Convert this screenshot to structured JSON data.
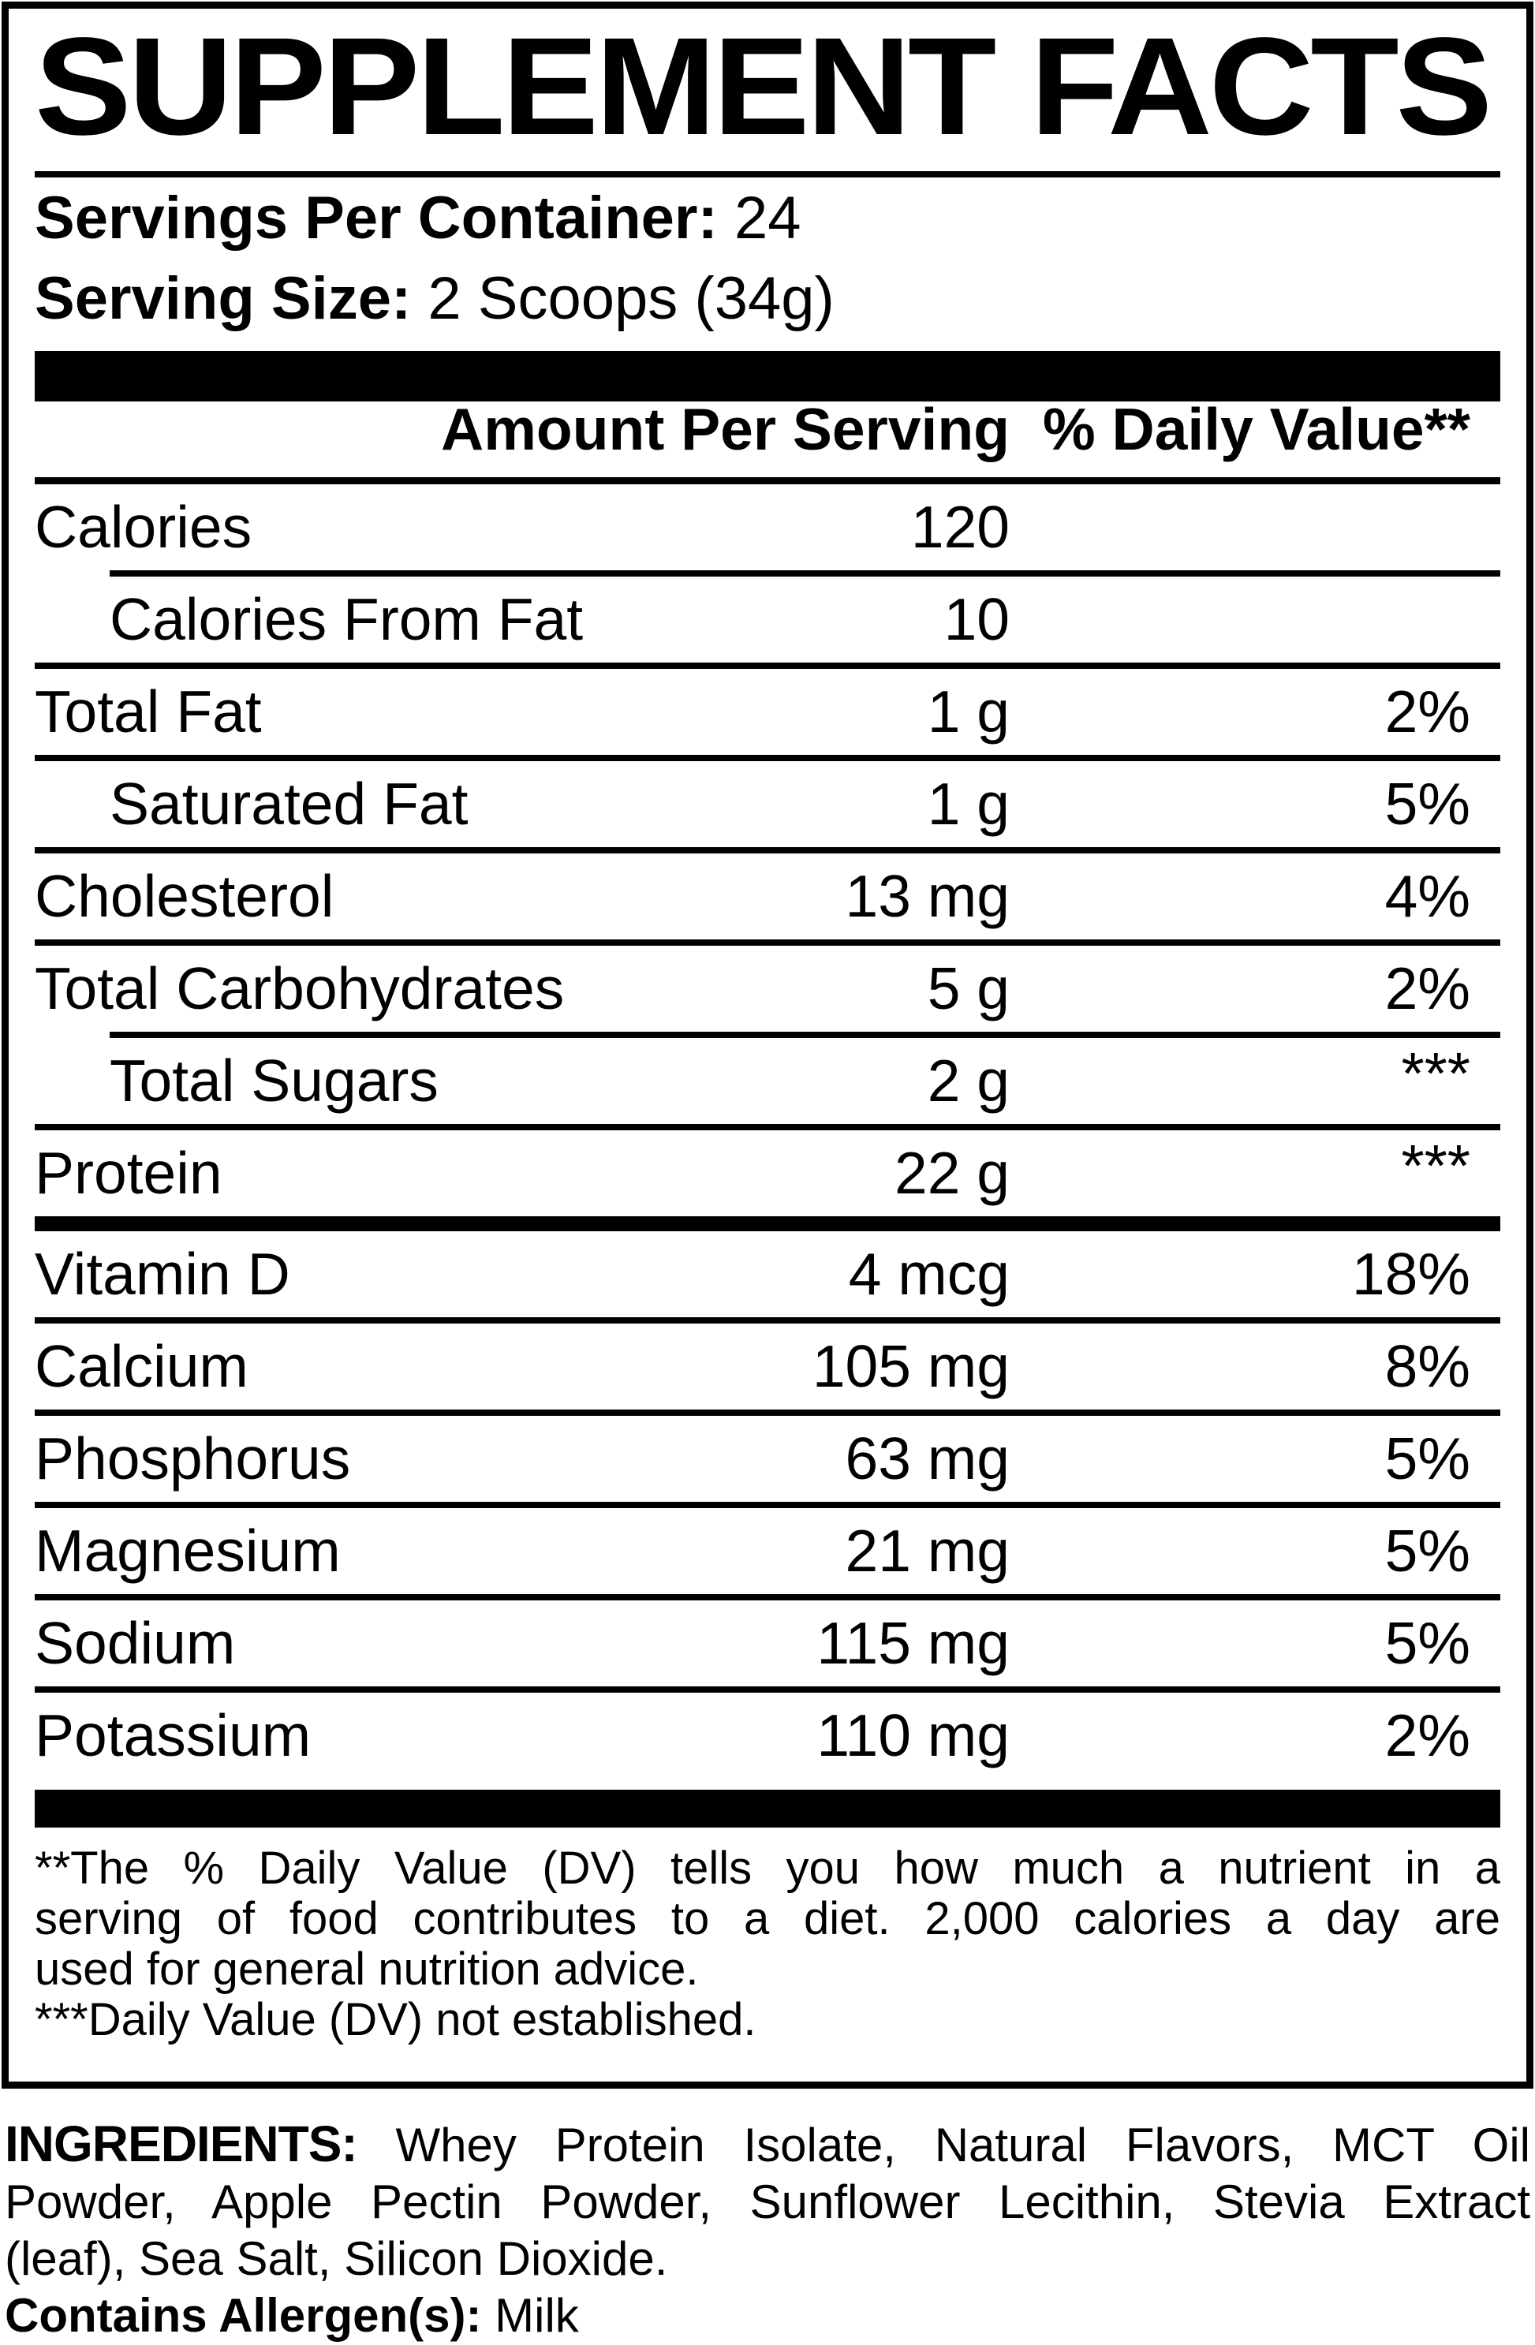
{
  "title": "SUPPLEMENT FACTS",
  "servings": {
    "label": "Servings Per Container:",
    "value": "24"
  },
  "serving_size": {
    "label": "Serving Size:",
    "value": "2 Scoops (34g)"
  },
  "table": {
    "col_amount": "Amount Per Serving",
    "col_dv": "% Daily Value**",
    "rows": [
      {
        "name": "Calories",
        "amount": "120",
        "dv": "",
        "indent": false,
        "dv_raised": false,
        "sep_after": "indent"
      },
      {
        "name": "Calories From Fat",
        "amount": "10",
        "dv": "",
        "indent": true,
        "dv_raised": false,
        "sep_after": "full"
      },
      {
        "name": "Total Fat",
        "amount": "1 g",
        "dv": "2%",
        "indent": false,
        "dv_raised": false,
        "sep_after": "full"
      },
      {
        "name": "Saturated Fat",
        "amount": "1 g",
        "dv": "5%",
        "indent": true,
        "dv_raised": false,
        "sep_after": "full"
      },
      {
        "name": "Cholesterol",
        "amount": "13 mg",
        "dv": "4%",
        "indent": false,
        "dv_raised": false,
        "sep_after": "full"
      },
      {
        "name": "Total Carbohydrates",
        "amount": "5 g",
        "dv": "2%",
        "indent": false,
        "dv_raised": false,
        "sep_after": "indent"
      },
      {
        "name": "Total Sugars",
        "amount": "2 g",
        "dv": "***",
        "indent": true,
        "dv_raised": true,
        "sep_after": "full"
      },
      {
        "name": "Protein",
        "amount": "22 g",
        "dv": "***",
        "indent": false,
        "dv_raised": true,
        "sep_after": "thick"
      },
      {
        "name": "Vitamin D",
        "amount": "4 mcg",
        "dv": "18%",
        "indent": false,
        "dv_raised": false,
        "sep_after": "full"
      },
      {
        "name": "Calcium",
        "amount": "105 mg",
        "dv": "8%",
        "indent": false,
        "dv_raised": false,
        "sep_after": "full"
      },
      {
        "name": "Phosphorus",
        "amount": "63 mg",
        "dv": "5%",
        "indent": false,
        "dv_raised": false,
        "sep_after": "full"
      },
      {
        "name": "Magnesium",
        "amount": "21 mg",
        "dv": "5%",
        "indent": false,
        "dv_raised": false,
        "sep_after": "full"
      },
      {
        "name": "Sodium",
        "amount": "115 mg",
        "dv": "5%",
        "indent": false,
        "dv_raised": false,
        "sep_after": "full"
      },
      {
        "name": "Potassium",
        "amount": "110 mg",
        "dv": "2%",
        "indent": false,
        "dv_raised": false,
        "sep_after": "none"
      }
    ]
  },
  "footnote": {
    "lines": [
      "**The % Daily Value (DV) tells you how much a nutrient in a",
      "serving of food contributes to a diet. 2,000 calories a day are",
      "used for general nutrition advice.",
      "***Daily Value (DV) not established."
    ]
  },
  "ingredients": {
    "label": "INGREDIENTS:",
    "line1_rest": " Whey Protein Isolate, Natural Flavors, MCT Oil",
    "line2": "Powder, Apple Pectin Powder, Sunflower Lecithin, Stevia Extract",
    "line3": "(leaf), Sea Salt, Silicon Dioxide."
  },
  "allergen": {
    "label": "Contains Allergen(s):",
    "value": " Milk"
  },
  "colors": {
    "ink": "#000000",
    "paper": "#ffffff"
  }
}
